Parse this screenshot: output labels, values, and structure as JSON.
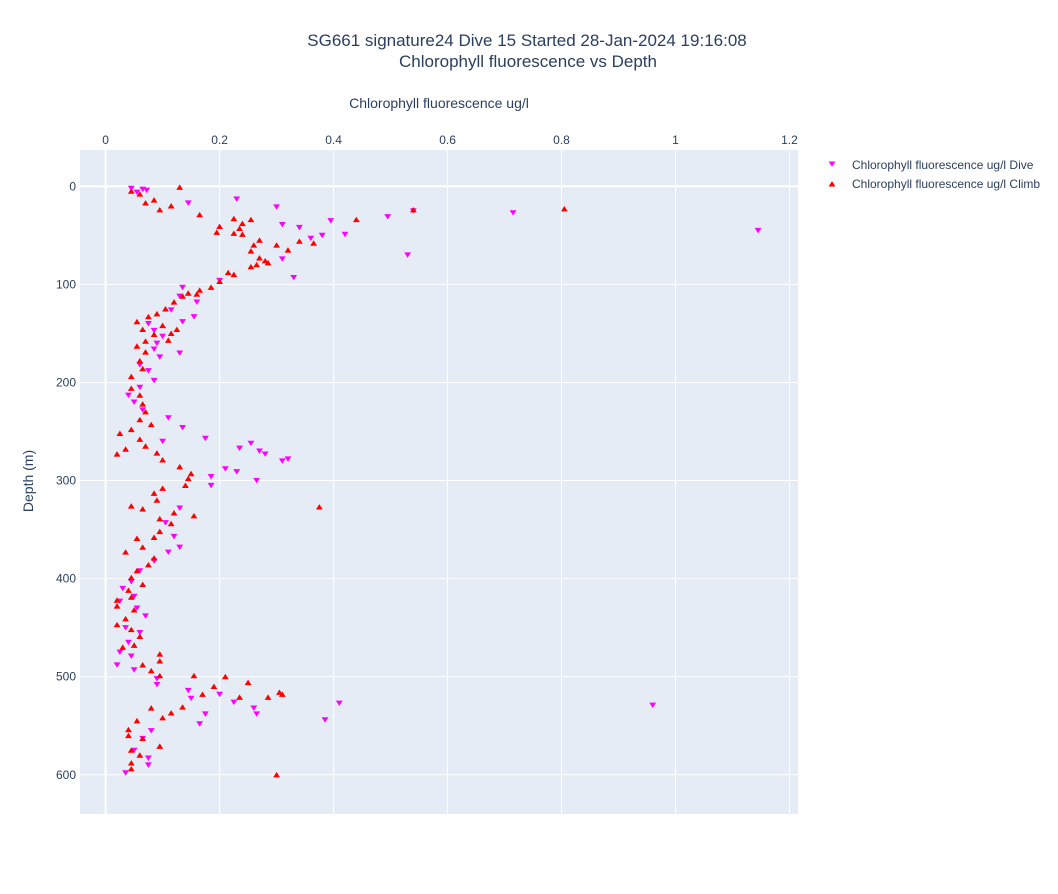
{
  "chart_data": {
    "type": "scatter",
    "title": "SG661 signature24 Dive 15 Started 28-Jan-2024 19:16:08",
    "subtitle": "Chlorophyll fluorescence vs Depth",
    "xlabel": "Chlorophyll fluorescence ug/l",
    "ylabel": "Depth (m)",
    "xlim": [
      -0.045,
      1.215
    ],
    "ylim": [
      640,
      -37
    ],
    "x_axis_position": "top",
    "y_axis_reversed": true,
    "xticks": [
      "0",
      "0.2",
      "0.4",
      "0.6",
      "0.8",
      "1",
      "1.2"
    ],
    "yticks": [
      "0",
      "100",
      "200",
      "300",
      "400",
      "500",
      "600"
    ],
    "grid": true,
    "legend_position": "top-right",
    "series": [
      {
        "name": "Chlorophyll fluorescence ug/l Dive",
        "marker": "triangle-down",
        "color": "#ff00ff",
        "points": [
          [
            0.045,
            2
          ],
          [
            0.065,
            3
          ],
          [
            0.072,
            4
          ],
          [
            0.055,
            6
          ],
          [
            0.23,
            13
          ],
          [
            0.145,
            17
          ],
          [
            0.3,
            21
          ],
          [
            0.715,
            27
          ],
          [
            0.54,
            25
          ],
          [
            0.495,
            31
          ],
          [
            0.395,
            35
          ],
          [
            0.31,
            39
          ],
          [
            0.34,
            42
          ],
          [
            0.38,
            50
          ],
          [
            0.36,
            53
          ],
          [
            0.42,
            49
          ],
          [
            1.145,
            45
          ],
          [
            0.53,
            70
          ],
          [
            0.31,
            74
          ],
          [
            0.33,
            93
          ],
          [
            0.2,
            96
          ],
          [
            0.135,
            103
          ],
          [
            0.13,
            112
          ],
          [
            0.16,
            118
          ],
          [
            0.115,
            126
          ],
          [
            0.155,
            133
          ],
          [
            0.135,
            138
          ],
          [
            0.075,
            140
          ],
          [
            0.085,
            147
          ],
          [
            0.1,
            153
          ],
          [
            0.09,
            160
          ],
          [
            0.085,
            166
          ],
          [
            0.13,
            170
          ],
          [
            0.095,
            174
          ],
          [
            0.06,
            182
          ],
          [
            0.075,
            188
          ],
          [
            0.085,
            198
          ],
          [
            0.06,
            205
          ],
          [
            0.04,
            213
          ],
          [
            0.05,
            220
          ],
          [
            0.065,
            228
          ],
          [
            0.11,
            236
          ],
          [
            0.135,
            246
          ],
          [
            0.175,
            257
          ],
          [
            0.1,
            260
          ],
          [
            0.235,
            267
          ],
          [
            0.255,
            262
          ],
          [
            0.27,
            270
          ],
          [
            0.31,
            280
          ],
          [
            0.32,
            278
          ],
          [
            0.28,
            273
          ],
          [
            0.21,
            288
          ],
          [
            0.23,
            291
          ],
          [
            0.185,
            296
          ],
          [
            0.265,
            300
          ],
          [
            0.185,
            305
          ],
          [
            0.13,
            328
          ],
          [
            0.105,
            343
          ],
          [
            0.12,
            357
          ],
          [
            0.13,
            368
          ],
          [
            0.11,
            373
          ],
          [
            0.085,
            382
          ],
          [
            0.06,
            392
          ],
          [
            0.045,
            403
          ],
          [
            0.03,
            410
          ],
          [
            0.05,
            418
          ],
          [
            0.025,
            423
          ],
          [
            0.055,
            430
          ],
          [
            0.07,
            438
          ],
          [
            0.035,
            450
          ],
          [
            0.06,
            455
          ],
          [
            0.04,
            465
          ],
          [
            0.025,
            475
          ],
          [
            0.045,
            479
          ],
          [
            0.02,
            488
          ],
          [
            0.05,
            493
          ],
          [
            0.09,
            502
          ],
          [
            0.09,
            508
          ],
          [
            0.145,
            514
          ],
          [
            0.15,
            522
          ],
          [
            0.2,
            518
          ],
          [
            0.225,
            526
          ],
          [
            0.26,
            532
          ],
          [
            0.265,
            538
          ],
          [
            0.41,
            527
          ],
          [
            0.96,
            529
          ],
          [
            0.385,
            544
          ],
          [
            0.175,
            538
          ],
          [
            0.165,
            548
          ],
          [
            0.08,
            555
          ],
          [
            0.065,
            563
          ],
          [
            0.05,
            575
          ],
          [
            0.075,
            583
          ],
          [
            0.075,
            590
          ],
          [
            0.035,
            598
          ]
        ]
      },
      {
        "name": "Chlorophyll fluorescence ug/l Climb",
        "marker": "triangle-up",
        "color": "#ff0000",
        "points": [
          [
            0.13,
            1
          ],
          [
            0.045,
            5
          ],
          [
            0.06,
            8
          ],
          [
            0.085,
            14
          ],
          [
            0.07,
            17
          ],
          [
            0.095,
            24
          ],
          [
            0.115,
            20
          ],
          [
            0.165,
            29
          ],
          [
            0.225,
            33
          ],
          [
            0.255,
            34
          ],
          [
            0.24,
            38
          ],
          [
            0.2,
            41
          ],
          [
            0.195,
            47
          ],
          [
            0.225,
            48
          ],
          [
            0.24,
            49
          ],
          [
            0.235,
            43
          ],
          [
            0.27,
            55
          ],
          [
            0.26,
            60
          ],
          [
            0.255,
            66
          ],
          [
            0.3,
            60
          ],
          [
            0.32,
            65
          ],
          [
            0.34,
            56
          ],
          [
            0.365,
            58
          ],
          [
            0.44,
            34
          ],
          [
            0.54,
            24
          ],
          [
            0.805,
            23
          ],
          [
            0.27,
            73
          ],
          [
            0.28,
            76
          ],
          [
            0.255,
            82
          ],
          [
            0.265,
            80
          ],
          [
            0.285,
            78
          ],
          [
            0.225,
            90
          ],
          [
            0.215,
            88
          ],
          [
            0.2,
            97
          ],
          [
            0.185,
            103
          ],
          [
            0.165,
            106
          ],
          [
            0.16,
            110
          ],
          [
            0.145,
            109
          ],
          [
            0.135,
            112
          ],
          [
            0.12,
            118
          ],
          [
            0.105,
            125
          ],
          [
            0.09,
            130
          ],
          [
            0.075,
            133
          ],
          [
            0.055,
            138
          ],
          [
            0.065,
            146
          ],
          [
            0.085,
            151
          ],
          [
            0.07,
            158
          ],
          [
            0.11,
            157
          ],
          [
            0.115,
            150
          ],
          [
            0.1,
            142
          ],
          [
            0.125,
            146
          ],
          [
            0.055,
            163
          ],
          [
            0.07,
            169
          ],
          [
            0.06,
            178
          ],
          [
            0.065,
            186
          ],
          [
            0.045,
            194
          ],
          [
            0.045,
            206
          ],
          [
            0.06,
            213
          ],
          [
            0.065,
            222
          ],
          [
            0.07,
            230
          ],
          [
            0.06,
            238
          ],
          [
            0.08,
            243
          ],
          [
            0.045,
            248
          ],
          [
            0.025,
            252
          ],
          [
            0.06,
            258
          ],
          [
            0.07,
            265
          ],
          [
            0.035,
            268
          ],
          [
            0.02,
            273
          ],
          [
            0.09,
            272
          ],
          [
            0.1,
            279
          ],
          [
            0.13,
            286
          ],
          [
            0.15,
            293
          ],
          [
            0.145,
            298
          ],
          [
            0.14,
            305
          ],
          [
            0.1,
            308
          ],
          [
            0.085,
            313
          ],
          [
            0.09,
            320
          ],
          [
            0.045,
            326
          ],
          [
            0.065,
            329
          ],
          [
            0.375,
            327
          ],
          [
            0.12,
            333
          ],
          [
            0.095,
            339
          ],
          [
            0.155,
            336
          ],
          [
            0.115,
            344
          ],
          [
            0.095,
            352
          ],
          [
            0.085,
            358
          ],
          [
            0.055,
            359
          ],
          [
            0.065,
            368
          ],
          [
            0.035,
            373
          ],
          [
            0.085,
            379
          ],
          [
            0.075,
            386
          ],
          [
            0.055,
            392
          ],
          [
            0.045,
            399
          ],
          [
            0.065,
            406
          ],
          [
            0.04,
            412
          ],
          [
            0.045,
            419
          ],
          [
            0.02,
            422
          ],
          [
            0.02,
            428
          ],
          [
            0.05,
            432
          ],
          [
            0.035,
            441
          ],
          [
            0.02,
            447
          ],
          [
            0.045,
            452
          ],
          [
            0.06,
            459
          ],
          [
            0.05,
            468
          ],
          [
            0.03,
            470
          ],
          [
            0.095,
            477
          ],
          [
            0.095,
            484
          ],
          [
            0.065,
            488
          ],
          [
            0.08,
            494
          ],
          [
            0.095,
            499
          ],
          [
            0.155,
            499
          ],
          [
            0.21,
            500
          ],
          [
            0.25,
            506
          ],
          [
            0.19,
            510
          ],
          [
            0.17,
            518
          ],
          [
            0.235,
            521
          ],
          [
            0.285,
            521
          ],
          [
            0.305,
            516
          ],
          [
            0.31,
            518
          ],
          [
            0.135,
            531
          ],
          [
            0.115,
            537
          ],
          [
            0.1,
            542
          ],
          [
            0.08,
            532
          ],
          [
            0.055,
            545
          ],
          [
            0.04,
            554
          ],
          [
            0.04,
            560
          ],
          [
            0.065,
            563
          ],
          [
            0.095,
            571
          ],
          [
            0.045,
            575
          ],
          [
            0.06,
            580
          ],
          [
            0.045,
            588
          ],
          [
            0.045,
            594
          ],
          [
            0.3,
            600
          ]
        ]
      }
    ]
  }
}
